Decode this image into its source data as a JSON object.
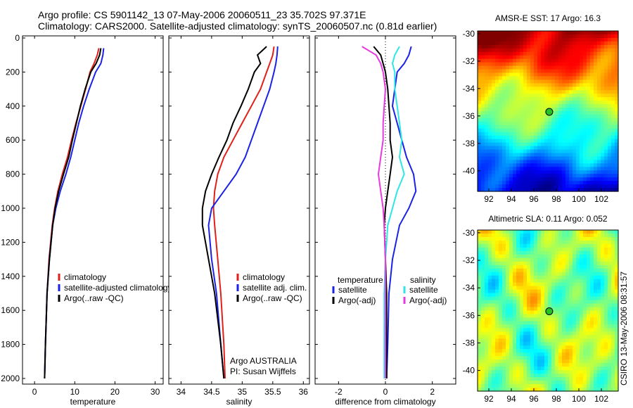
{
  "figure": {
    "title_line1": "Argo profile: CS 5901142_13 07-May-2006 20060511_23 35.702S 97.371E",
    "title_line2": "Climatology: CARS2000. Satellite-adjusted climatology: synTS_20060507.nc (0.81d earlier)",
    "side_label": "CSIRO 13-May-2006 08:31:57",
    "credit_line1": "Argo AUSTRALIA",
    "credit_line2": "PI: Susan Wijffels"
  },
  "colors": {
    "climatology": "#e0201a",
    "satellite": "#1a22e6",
    "argo": "#000000",
    "satellite_salinity": "#2ee6e6",
    "argo_salinity_adj": "#e63ae0"
  },
  "chart_data": [
    {
      "type": "line",
      "panel": "temperature",
      "xlabel": "temperature",
      "xlim": [
        -3,
        32
      ],
      "xticks": [
        0,
        10,
        20,
        30
      ],
      "ylim": [
        2050,
        0
      ],
      "yticks": [
        0,
        200,
        400,
        600,
        800,
        1000,
        1200,
        1400,
        1600,
        1800,
        2000
      ],
      "legend": [
        "climatology",
        "satellite-adjusted climatology",
        "Argo(..raw -QC)"
      ],
      "series": [
        {
          "name": "climatology",
          "color_key": "climatology",
          "x": [
            16.0,
            15.6,
            14.8,
            13.8,
            12.7,
            11.5,
            10.3,
            9.2,
            8.2,
            6.9,
            5.8,
            5.0,
            4.4,
            3.6,
            3.1,
            2.7,
            2.5
          ],
          "y": [
            60,
            100,
            150,
            200,
            300,
            400,
            500,
            600,
            700,
            800,
            900,
            1000,
            1100,
            1300,
            1500,
            1800,
            2000
          ]
        },
        {
          "name": "satellite-adjusted climatology",
          "color_key": "satellite",
          "x": [
            17.2,
            17.0,
            16.5,
            15.2,
            13.6,
            12.2,
            11.0,
            10.0,
            9.0,
            7.8,
            6.4,
            5.3,
            4.5,
            3.7,
            3.1,
            2.7,
            2.5
          ],
          "y": [
            60,
            100,
            150,
            200,
            300,
            400,
            500,
            600,
            700,
            800,
            900,
            1000,
            1100,
            1300,
            1500,
            1800,
            2000
          ]
        },
        {
          "name": "Argo(..raw -QC)",
          "color_key": "argo",
          "x": [
            16.5,
            16.2,
            15.3,
            14.0,
            12.6,
            11.4,
            10.4,
            9.4,
            8.5,
            7.2,
            6.0,
            5.1,
            4.5,
            3.7,
            3.1,
            2.7,
            2.5
          ],
          "y": [
            60,
            100,
            150,
            200,
            300,
            400,
            500,
            600,
            700,
            800,
            900,
            1000,
            1100,
            1300,
            1500,
            1800,
            2000
          ]
        }
      ]
    },
    {
      "type": "line",
      "panel": "salinity",
      "xlabel": "salinity",
      "xlim": [
        33.8,
        36.1
      ],
      "xticks": [
        34,
        34.5,
        35,
        35.5,
        36
      ],
      "ylim": [
        2050,
        0
      ],
      "legend": [
        "climatology",
        "satellite adj. clim.",
        "Argo(..raw -QC)"
      ],
      "series": [
        {
          "name": "climatology",
          "color_key": "climatology",
          "x": [
            35.52,
            35.5,
            35.45,
            35.4,
            35.3,
            35.15,
            35.0,
            34.85,
            34.7,
            34.6,
            34.55,
            34.53,
            34.55,
            34.6,
            34.65,
            34.7,
            34.72
          ],
          "y": [
            50,
            100,
            150,
            200,
            300,
            400,
            500,
            600,
            700,
            800,
            900,
            1000,
            1100,
            1300,
            1500,
            1800,
            2000
          ]
        },
        {
          "name": "satellite adj. clim.",
          "color_key": "satellite",
          "x": [
            35.58,
            35.57,
            35.55,
            35.52,
            35.45,
            35.35,
            35.25,
            35.15,
            35.05,
            34.9,
            34.7,
            34.5,
            34.45,
            34.5,
            34.58,
            34.65,
            34.7
          ],
          "y": [
            50,
            100,
            150,
            200,
            300,
            400,
            500,
            600,
            700,
            800,
            900,
            1000,
            1100,
            1300,
            1500,
            1800,
            2000
          ]
        },
        {
          "name": "Argo(..raw -QC)",
          "color_key": "argo",
          "x": [
            35.4,
            35.25,
            35.3,
            35.2,
            35.1,
            34.98,
            34.85,
            34.75,
            34.62,
            34.5,
            34.4,
            34.35,
            34.35,
            34.45,
            34.55,
            34.65,
            34.7
          ],
          "y": [
            50,
            100,
            150,
            200,
            300,
            400,
            500,
            600,
            700,
            800,
            900,
            1000,
            1100,
            1300,
            1500,
            1800,
            2000
          ]
        }
      ]
    },
    {
      "type": "line",
      "panel": "difference",
      "xlabel": "difference from climatology",
      "xlim": [
        -3,
        3
      ],
      "xticks": [
        -2,
        0,
        2
      ],
      "ylim": [
        2050,
        0
      ],
      "legend_temperature_title": "temperature",
      "legend_salinity_title": "salinity",
      "legend": [
        "satellite",
        "Argo(-adj)",
        "satellite",
        "Argo(-adj)"
      ],
      "series": [
        {
          "name": "satellite",
          "group": "temperature",
          "color_key": "satellite",
          "x": [
            1.1,
            1.0,
            0.8,
            0.5,
            0.4,
            0.3,
            0.5,
            0.7,
            0.9,
            1.2,
            1.3,
            1.0,
            0.6,
            0.3,
            0.15,
            0.1,
            0.05
          ],
          "y": [
            50,
            100,
            150,
            200,
            300,
            400,
            500,
            600,
            700,
            800,
            900,
            1000,
            1100,
            1300,
            1500,
            1800,
            2000
          ]
        },
        {
          "name": "Argo(-adj)",
          "group": "temperature",
          "color_key": "argo",
          "x": [
            -0.5,
            -0.2,
            -0.1,
            0.0,
            0.1,
            0.15,
            0.2,
            0.2,
            0.3,
            0.2,
            0.1,
            0.0,
            -0.05,
            0.0,
            0.05,
            0.05,
            0.05
          ],
          "y": [
            50,
            100,
            150,
            200,
            300,
            400,
            500,
            600,
            700,
            800,
            900,
            1000,
            1100,
            1300,
            1500,
            1800,
            2000
          ]
        },
        {
          "name": "satellite",
          "group": "salinity",
          "color_key": "satellite_salinity",
          "x": [
            0.6,
            0.4,
            0.3,
            0.4,
            0.4,
            0.5,
            0.6,
            0.7,
            0.6,
            0.8,
            0.5,
            0.3,
            0.1,
            0.0,
            -0.05,
            -0.05,
            -0.05
          ],
          "y": [
            50,
            100,
            150,
            200,
            300,
            400,
            500,
            600,
            700,
            800,
            900,
            1000,
            1100,
            1300,
            1500,
            1800,
            2000
          ]
        },
        {
          "name": "Argo(-adj)",
          "group": "salinity",
          "color_key": "argo_salinity_adj",
          "x": [
            -1.0,
            -0.4,
            -0.2,
            -0.1,
            0.0,
            -0.05,
            -0.1,
            -0.1,
            -0.2,
            -0.3,
            -0.2,
            -0.1,
            -0.05,
            0.0,
            0.0,
            0.0,
            0.0
          ],
          "y": [
            50,
            100,
            150,
            200,
            300,
            400,
            500,
            600,
            700,
            800,
            900,
            1000,
            1100,
            1300,
            1500,
            1800,
            2000
          ]
        }
      ]
    },
    {
      "type": "heatmap",
      "panel": "sst_map",
      "title": "AMSR-E SST: 17 Argo: 16.3",
      "xlim": [
        91,
        103.5
      ],
      "ylim": [
        -41.5,
        -29.8
      ],
      "xticks": [
        92,
        94,
        96,
        98,
        100,
        102
      ],
      "yticks": [
        -30,
        -32,
        -34,
        -36,
        -38,
        -40
      ],
      "marker": {
        "lon": 97.37,
        "lat": -35.7
      },
      "colormap": "jet"
    },
    {
      "type": "heatmap",
      "panel": "sla_map",
      "title": "Altimetric SLA: 0.11 Argo: 0.052",
      "xlim": [
        91,
        103.5
      ],
      "ylim": [
        -41.5,
        -29.8
      ],
      "xticks": [
        92,
        94,
        96,
        98,
        100,
        102
      ],
      "yticks": [
        -30,
        -32,
        -34,
        -36,
        -38,
        -40
      ],
      "marker": {
        "lon": 97.37,
        "lat": -35.7
      },
      "colormap": "jet"
    }
  ]
}
